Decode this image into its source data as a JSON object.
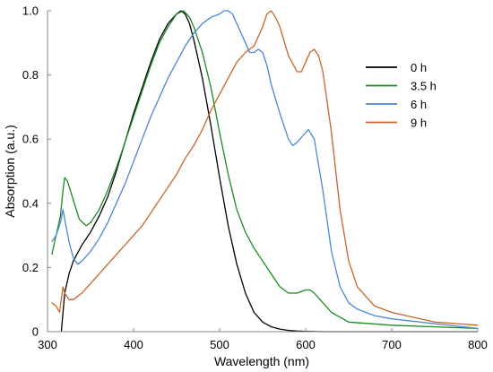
{
  "chart_data": {
    "type": "line",
    "title": "",
    "xlabel": "Wavelength (nm)",
    "ylabel": "Absorption (a.u.)",
    "xlim": [
      300,
      800
    ],
    "ylim": [
      0,
      1.0
    ],
    "xticks": [
      300,
      400,
      500,
      600,
      700,
      800
    ],
    "yticks": [
      0,
      0.2,
      0.4,
      0.6,
      0.8,
      1.0
    ],
    "ytick_labels": [
      "0",
      "0.2",
      "0.4",
      "0.6",
      "0.8",
      "1.0"
    ],
    "grid": false,
    "legend_position": "top-right",
    "series": [
      {
        "name": "0 h",
        "color": "#000000",
        "x": [
          316,
          320,
          325,
          330,
          340,
          350,
          360,
          370,
          380,
          390,
          400,
          410,
          420,
          430,
          440,
          450,
          455,
          460,
          465,
          470,
          480,
          490,
          500,
          510,
          520,
          530,
          540,
          550,
          560,
          570,
          580,
          590,
          600,
          620,
          650,
          700,
          750,
          800
        ],
        "y": [
          0.0,
          0.12,
          0.18,
          0.22,
          0.27,
          0.31,
          0.36,
          0.42,
          0.5,
          0.59,
          0.68,
          0.76,
          0.84,
          0.91,
          0.96,
          0.99,
          1.0,
          0.99,
          0.96,
          0.91,
          0.79,
          0.64,
          0.48,
          0.33,
          0.21,
          0.12,
          0.06,
          0.03,
          0.015,
          0.008,
          0.004,
          0.002,
          0.001,
          0.0,
          0.0,
          0.0,
          0.0,
          0.0
        ]
      },
      {
        "name": "3.5 h",
        "color": "#1e8a1e",
        "x": [
          305,
          310,
          315,
          318,
          320,
          323,
          330,
          337,
          345,
          350,
          360,
          370,
          380,
          390,
          400,
          410,
          420,
          430,
          440,
          450,
          458,
          465,
          470,
          480,
          490,
          500,
          510,
          520,
          530,
          540,
          550,
          560,
          570,
          580,
          590,
          600,
          605,
          610,
          620,
          630,
          650,
          700,
          750,
          800
        ],
        "y": [
          0.24,
          0.3,
          0.36,
          0.44,
          0.48,
          0.47,
          0.41,
          0.35,
          0.33,
          0.34,
          0.38,
          0.44,
          0.51,
          0.59,
          0.67,
          0.75,
          0.83,
          0.9,
          0.95,
          0.99,
          1.0,
          0.98,
          0.95,
          0.87,
          0.76,
          0.62,
          0.49,
          0.38,
          0.31,
          0.26,
          0.22,
          0.18,
          0.14,
          0.12,
          0.12,
          0.13,
          0.13,
          0.12,
          0.09,
          0.06,
          0.03,
          0.02,
          0.015,
          0.01
        ]
      },
      {
        "name": "6 h",
        "color": "#4a86d8",
        "x": [
          305,
          310,
          315,
          318,
          320,
          325,
          330,
          335,
          340,
          350,
          360,
          370,
          380,
          390,
          400,
          410,
          420,
          430,
          440,
          450,
          460,
          470,
          480,
          490,
          500,
          505,
          510,
          515,
          520,
          530,
          535,
          540,
          545,
          550,
          555,
          560,
          570,
          580,
          585,
          590,
          600,
          603,
          610,
          620,
          630,
          640,
          650,
          660,
          680,
          700,
          750,
          800
        ],
        "y": [
          0.28,
          0.3,
          0.34,
          0.38,
          0.35,
          0.28,
          0.23,
          0.21,
          0.22,
          0.25,
          0.29,
          0.34,
          0.4,
          0.46,
          0.53,
          0.6,
          0.67,
          0.73,
          0.79,
          0.84,
          0.89,
          0.93,
          0.96,
          0.98,
          0.99,
          1.0,
          1.0,
          0.99,
          0.96,
          0.9,
          0.87,
          0.87,
          0.88,
          0.87,
          0.83,
          0.77,
          0.68,
          0.6,
          0.58,
          0.59,
          0.62,
          0.63,
          0.6,
          0.44,
          0.25,
          0.14,
          0.09,
          0.07,
          0.05,
          0.04,
          0.025,
          0.01
        ]
      },
      {
        "name": "9 h",
        "color": "#c8642c",
        "x": [
          305,
          310,
          314,
          318,
          320,
          325,
          330,
          340,
          350,
          360,
          370,
          380,
          390,
          400,
          410,
          420,
          430,
          440,
          450,
          460,
          470,
          480,
          490,
          500,
          510,
          520,
          530,
          540,
          550,
          555,
          560,
          565,
          570,
          580,
          590,
          595,
          600,
          605,
          610,
          615,
          620,
          630,
          640,
          650,
          660,
          680,
          700,
          750,
          800
        ],
        "y": [
          0.09,
          0.08,
          0.06,
          0.14,
          0.12,
          0.1,
          0.1,
          0.12,
          0.15,
          0.18,
          0.21,
          0.24,
          0.27,
          0.3,
          0.33,
          0.37,
          0.41,
          0.45,
          0.49,
          0.54,
          0.58,
          0.63,
          0.69,
          0.74,
          0.79,
          0.84,
          0.87,
          0.89,
          0.95,
          0.99,
          1.0,
          0.98,
          0.95,
          0.86,
          0.81,
          0.81,
          0.84,
          0.87,
          0.88,
          0.86,
          0.81,
          0.62,
          0.38,
          0.22,
          0.14,
          0.08,
          0.06,
          0.03,
          0.02
        ]
      }
    ]
  }
}
